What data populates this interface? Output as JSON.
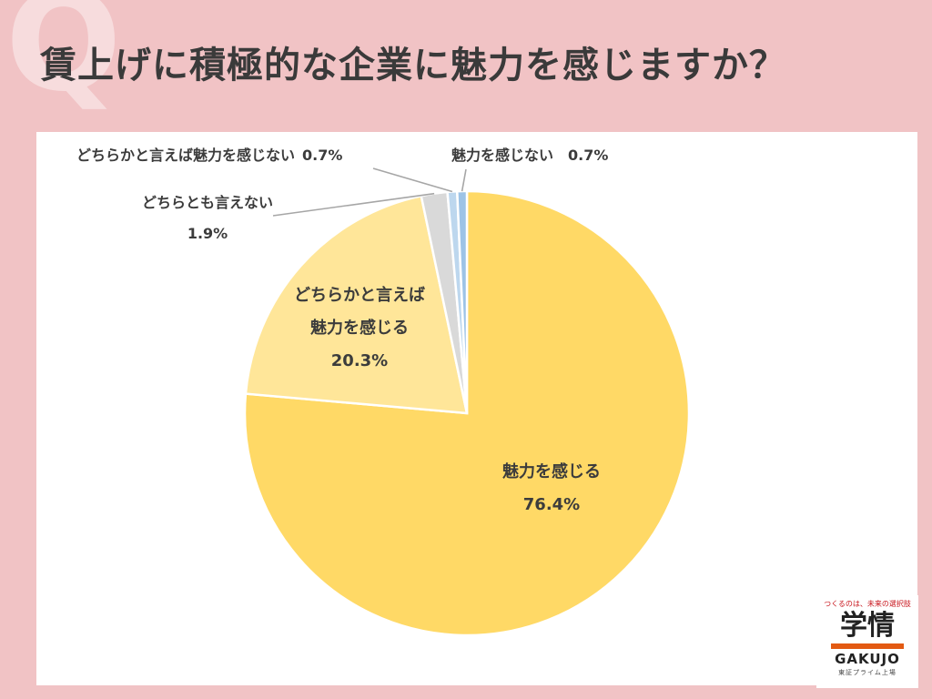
{
  "header": {
    "q_mark": "Q",
    "title": "賃上げに積極的な企業に魅力を感じますか？"
  },
  "chart_data": {
    "type": "pie",
    "title": "賃上げに積極的な企業に魅力を感じますか？",
    "slices": [
      {
        "label": [
          "魅力を感じる"
        ],
        "value": 76.4,
        "value_text": "76.4%",
        "color": "#ffd966",
        "label_style": "inside"
      },
      {
        "label": [
          "どちらかと言えば",
          "魅力を感じる"
        ],
        "value": 20.3,
        "value_text": "20.3%",
        "color": "#ffe699",
        "label_style": "inside"
      },
      {
        "label": [
          "どちらとも言えない"
        ],
        "value": 1.9,
        "value_text": "1.9%",
        "color": "#d9d9d9",
        "label_style": "callout"
      },
      {
        "label": [
          "どちらかと言えば魅力を感じない"
        ],
        "value": 0.7,
        "value_text": "0.7%",
        "color": "#bdd7ee",
        "label_style": "callout"
      },
      {
        "label": [
          "魅力を感じない"
        ],
        "value": 0.7,
        "value_text": "0.7%",
        "color": "#9dc3e6",
        "label_style": "callout"
      }
    ],
    "start": "12 o'clock",
    "direction": "clockwise",
    "legend": "none"
  },
  "logo": {
    "tagline": "つくるのは、未来の選択肢",
    "kanji": "学情",
    "english": "GAKUJO",
    "sub": "東証プライム上場"
  }
}
